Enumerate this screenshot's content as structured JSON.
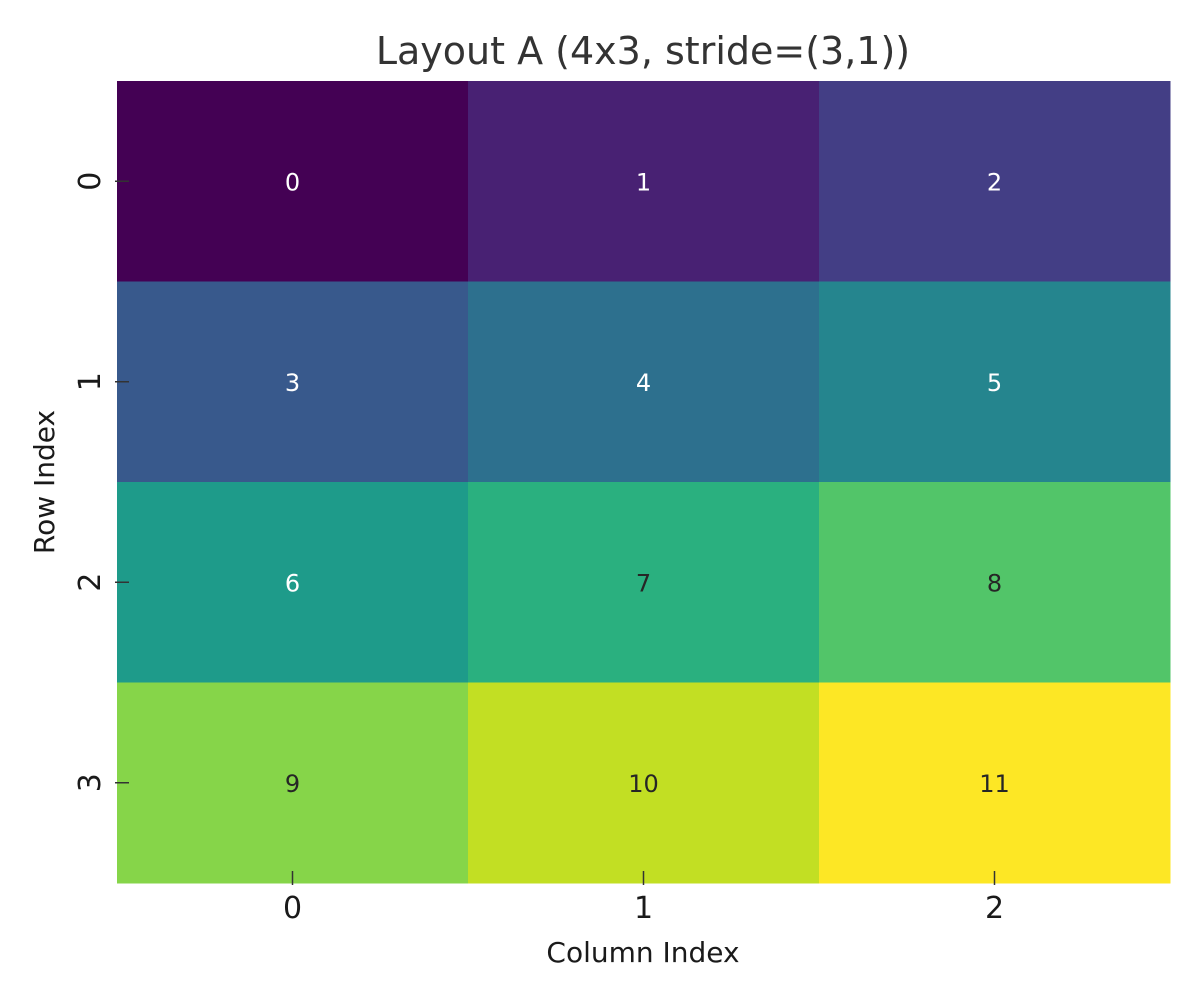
{
  "chart_data": {
    "type": "heatmap",
    "title": "Layout A (4x3, stride=(3,1))",
    "xlabel": "Column Index",
    "ylabel": "Row Index",
    "x_ticks": [
      "0",
      "1",
      "2"
    ],
    "y_ticks": [
      "0",
      "1",
      "2",
      "3"
    ],
    "values": [
      [
        0,
        1,
        2
      ],
      [
        3,
        4,
        5
      ],
      [
        6,
        7,
        8
      ],
      [
        9,
        10,
        11
      ]
    ],
    "colormap": "viridis",
    "colorbar": false,
    "cell_colors": [
      [
        "#440154",
        "#482173",
        "#433e85"
      ],
      [
        "#38598c",
        "#2d708e",
        "#25858e"
      ],
      [
        "#1e9b8a",
        "#2ab07f",
        "#52c569"
      ],
      [
        "#86d549",
        "#c2df23",
        "#fde725"
      ]
    ]
  }
}
